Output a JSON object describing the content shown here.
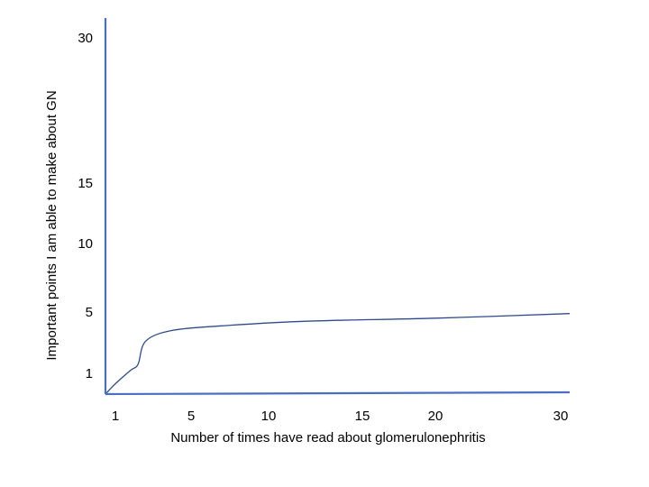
{
  "chart_data": {
    "type": "line",
    "title": "",
    "xlabel": "Number of times have read about glomerulonephritis",
    "ylabel": "Important points I am able to make about GN",
    "x_ticks": [
      {
        "value": 1,
        "label": "1"
      },
      {
        "value": 5,
        "label": "5"
      },
      {
        "value": 10,
        "label": "10"
      },
      {
        "value": 15,
        "label": "15"
      },
      {
        "value": 20,
        "label": "20"
      },
      {
        "value": 30,
        "label": "30"
      }
    ],
    "y_ticks": [
      {
        "value": 1,
        "label": "1"
      },
      {
        "value": 5,
        "label": "5"
      },
      {
        "value": 10,
        "label": "10"
      },
      {
        "value": 15,
        "label": "15"
      },
      {
        "value": 30,
        "label": "30"
      }
    ],
    "grid": false,
    "series": [
      {
        "color": "#2f4a8c",
        "points": [
          [
            0.5,
            0.0
          ],
          [
            1.0,
            0.5
          ],
          [
            1.8,
            1.2
          ],
          [
            2.2,
            1.6
          ],
          [
            2.6,
            3.1
          ],
          [
            4.0,
            3.8
          ],
          [
            7.0,
            4.1
          ],
          [
            12.0,
            4.4
          ],
          [
            20.0,
            4.6
          ],
          [
            30.5,
            4.9
          ]
        ]
      }
    ],
    "axis_color": "#4a6fc1",
    "line_color": "#2f4a8c"
  }
}
